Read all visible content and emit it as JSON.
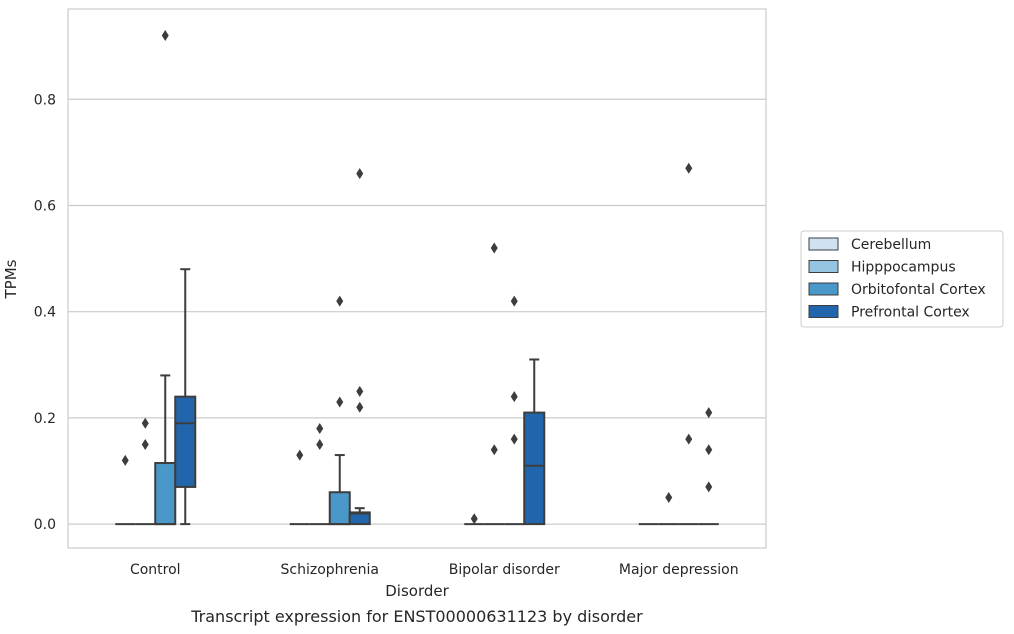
{
  "chart_data": {
    "type": "box",
    "caption": "Transcript expression for ENST00000631123 by disorder",
    "xlabel": "Disorder",
    "ylabel": "TPMs",
    "ylim": [
      -0.045,
      0.97
    ],
    "yticks": [
      "0.0",
      "0.2",
      "0.4",
      "0.6",
      "0.8"
    ],
    "grid": "horizontal",
    "legend_position": "right",
    "categories": [
      "Control",
      "Schizophrenia",
      "Bipolar disorder",
      "Major depression"
    ],
    "series": [
      {
        "name": "Cerebellum",
        "color": "#d0e1f2",
        "boxes": [
          {
            "q1": 0,
            "median": 0,
            "q3": 0,
            "whisker_low": 0,
            "whisker_high": 0,
            "fliers": [
              0.12
            ]
          },
          {
            "q1": 0,
            "median": 0,
            "q3": 0,
            "whisker_low": 0,
            "whisker_high": 0,
            "fliers": [
              0.13
            ]
          },
          {
            "q1": 0,
            "median": 0,
            "q3": 0,
            "whisker_low": 0,
            "whisker_high": 0,
            "fliers": [
              0.01
            ]
          },
          {
            "q1": 0,
            "median": 0,
            "q3": 0,
            "whisker_low": 0,
            "whisker_high": 0,
            "fliers": []
          }
        ]
      },
      {
        "name": "Hipppocampus",
        "color": "#94c4df",
        "boxes": [
          {
            "q1": 0,
            "median": 0,
            "q3": 0,
            "whisker_low": 0,
            "whisker_high": 0,
            "fliers": [
              0.15,
              0.19
            ]
          },
          {
            "q1": 0,
            "median": 0,
            "q3": 0,
            "whisker_low": 0,
            "whisker_high": 0,
            "fliers": [
              0.15,
              0.18
            ]
          },
          {
            "q1": 0,
            "median": 0,
            "q3": 0,
            "whisker_low": 0,
            "whisker_high": 0,
            "fliers": [
              0.14,
              0.52
            ]
          },
          {
            "q1": 0,
            "median": 0,
            "q3": 0,
            "whisker_low": 0,
            "whisker_high": 0,
            "fliers": [
              0.05
            ]
          }
        ]
      },
      {
        "name": "Orbitofontal Cortex",
        "color": "#4a98c9",
        "boxes": [
          {
            "q1": 0,
            "median": 0,
            "q3": 0.115,
            "whisker_low": 0,
            "whisker_high": 0.28,
            "fliers": [
              0.92
            ]
          },
          {
            "q1": 0,
            "median": 0,
            "q3": 0.06,
            "whisker_low": 0,
            "whisker_high": 0.13,
            "fliers": [
              0.23,
              0.42
            ]
          },
          {
            "q1": 0,
            "median": 0,
            "q3": 0,
            "whisker_low": 0,
            "whisker_high": 0,
            "fliers": [
              0.16,
              0.24,
              0.42
            ]
          },
          {
            "q1": 0,
            "median": 0,
            "q3": 0,
            "whisker_low": 0,
            "whisker_high": 0,
            "fliers": [
              0.16,
              0.67
            ]
          }
        ]
      },
      {
        "name": "Prefrontal Cortex",
        "color": "#2166ac",
        "boxes": [
          {
            "q1": 0.07,
            "median": 0.19,
            "q3": 0.24,
            "whisker_low": 0,
            "whisker_high": 0.48,
            "fliers": []
          },
          {
            "q1": 0,
            "median": 0.02,
            "q3": 0.022,
            "whisker_low": 0,
            "whisker_high": 0.03,
            "fliers": [
              0.22,
              0.25,
              0.66
            ]
          },
          {
            "q1": 0,
            "median": 0.11,
            "q3": 0.21,
            "whisker_low": 0,
            "whisker_high": 0.31,
            "fliers": []
          },
          {
            "q1": 0,
            "median": 0,
            "q3": 0,
            "whisker_low": 0,
            "whisker_high": 0,
            "fliers": [
              0.07,
              0.14,
              0.21
            ]
          }
        ]
      }
    ]
  }
}
